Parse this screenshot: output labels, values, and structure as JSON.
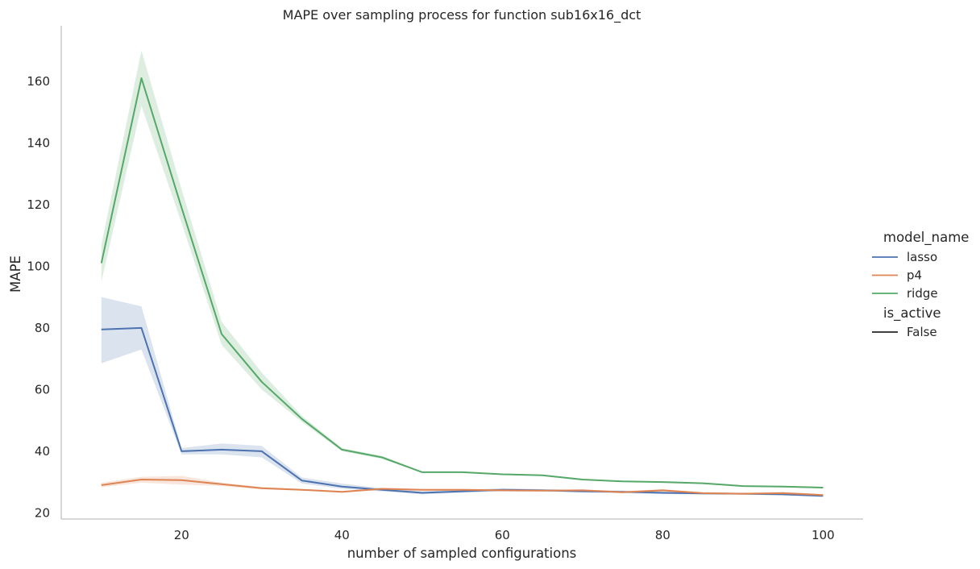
{
  "chart_data": {
    "type": "line",
    "title": "MAPE over sampling process for function sub16x16_dct",
    "xlabel": "number of sampled configurations",
    "ylabel": "MAPE",
    "xlim": [
      5,
      105
    ],
    "ylim": [
      18,
      178
    ],
    "x_ticks": [
      20,
      40,
      60,
      80,
      100
    ],
    "y_ticks": [
      20,
      40,
      60,
      80,
      100,
      120,
      140,
      160
    ],
    "grid": false,
    "legend_position": "right",
    "legend": {
      "hue_title": "model_name",
      "style_title": "is_active",
      "style_entries": [
        "False"
      ]
    },
    "x": [
      10,
      15,
      20,
      25,
      30,
      35,
      40,
      45,
      50,
      55,
      60,
      65,
      70,
      75,
      80,
      85,
      90,
      95,
      100
    ],
    "series": [
      {
        "name": "lasso",
        "color": "#4c72b0",
        "values": [
          79.5,
          80,
          40,
          40.5,
          40,
          30.5,
          28.5,
          27.5,
          26.5,
          27,
          27.5,
          27.3,
          27,
          26.8,
          26.5,
          26.3,
          26.2,
          26,
          25.5
        ],
        "lower": [
          68.5,
          73,
          39,
          39,
          38,
          29.5,
          27.8,
          27,
          26,
          26.5,
          27,
          27,
          26.6,
          26.4,
          26.1,
          26,
          25.9,
          25.7,
          25.2
        ],
        "upper": [
          90,
          87,
          41,
          42.5,
          41.7,
          31.5,
          29.5,
          28,
          27,
          27.5,
          28,
          27.7,
          27.4,
          27.2,
          26.9,
          26.6,
          26.5,
          26.3,
          25.8
        ]
      },
      {
        "name": "p4",
        "color": "#dd8452",
        "values": [
          29,
          30.8,
          30.6,
          29.3,
          28,
          27.5,
          26.8,
          27.8,
          27.5,
          27.5,
          27.3,
          27.2,
          27.3,
          26.7,
          27.3,
          26.4,
          26.2,
          26.4,
          25.8
        ],
        "lower": [
          28.3,
          29.8,
          29.2,
          28.7,
          27.6,
          27.2,
          26.5,
          27.5,
          27.2,
          27.2,
          27,
          26.9,
          27,
          26.4,
          26.9,
          26.1,
          25.9,
          26.1,
          25.5
        ],
        "upper": [
          29.8,
          31.7,
          32,
          29.8,
          28.4,
          27.8,
          27.1,
          28.1,
          27.8,
          27.8,
          27.6,
          27.5,
          27.6,
          27,
          27.7,
          26.7,
          26.5,
          26.8,
          26.1
        ]
      },
      {
        "name": "ridge",
        "color": "#55a868",
        "values": [
          101,
          161,
          119,
          78,
          62.5,
          50.5,
          40.5,
          38,
          33.2,
          33.2,
          32.5,
          32.2,
          30.8,
          30.2,
          30,
          29.6,
          28.7,
          28.5,
          28.2
        ],
        "lower": [
          95,
          152,
          114,
          74.5,
          60,
          49.5,
          40,
          37.5,
          33,
          33,
          32.3,
          32,
          30.6,
          30,
          29.8,
          29.4,
          28.5,
          28.3,
          28
        ],
        "upper": [
          107,
          170,
          125,
          82,
          65.5,
          51.5,
          41,
          38.5,
          33.4,
          33.4,
          32.7,
          32.4,
          31,
          30.4,
          30.2,
          29.8,
          28.9,
          28.7,
          28.4
        ]
      }
    ]
  }
}
